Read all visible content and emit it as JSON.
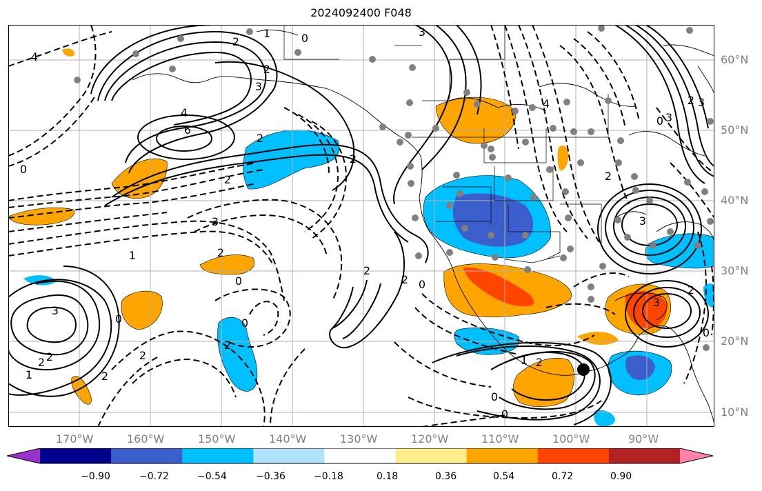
{
  "title": "2024092400 F048",
  "map": {
    "lon_labels": [
      "170°W",
      "160°W",
      "150°W",
      "140°W",
      "130°W",
      "120°W",
      "110°W",
      "100°W",
      "90°W"
    ],
    "lat_labels": [
      "60°N",
      "50°N",
      "40°N",
      "30°N",
      "20°N",
      "10°N"
    ]
  },
  "contour_labels": [
    "4",
    "6",
    "4",
    "3",
    "2",
    "2",
    "1",
    "0",
    "3",
    "2",
    "0",
    "2",
    "2",
    "3",
    "1",
    "2",
    "2",
    "0",
    "3",
    "2",
    "0",
    "2",
    "1",
    "2",
    "2",
    "3",
    "2",
    "4",
    "3",
    "2",
    "0",
    "0",
    "2",
    "0",
    "2",
    "1",
    "2",
    "0",
    "0",
    "3",
    "0",
    "2",
    "3"
  ],
  "colorbar": {
    "tick_labels": [
      "−0.90",
      "−0.72",
      "−0.54",
      "−0.36",
      "−0.18",
      "0.18",
      "0.36",
      "0.54",
      "0.72",
      "0.90"
    ],
    "colors": [
      "#9932cc",
      "#00008b",
      "#3a5fcd",
      "#00bfff",
      "#b0e2ff",
      "#ffffff",
      "#ffec8b",
      "#ffa500",
      "#ff4500",
      "#b22222",
      "#ff82ab"
    ]
  }
}
